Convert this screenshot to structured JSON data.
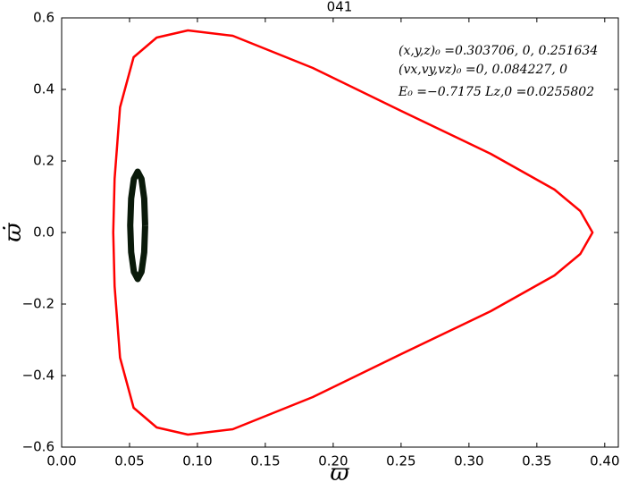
{
  "chart_data": {
    "type": "line",
    "title": "041",
    "xlabel": "ϖ",
    "ylabel": "ϖ̇",
    "annotations": [
      "(x,y,z)₀ =0.303706, 0, 0.251634",
      "(vx,vy,vz)₀ =0, 0.084227, 0",
      "E₀ =−0.7175  Lz,0 =0.0255802"
    ],
    "xlim": [
      0,
      0.41
    ],
    "ylim": [
      -0.6,
      0.6
    ],
    "xticks": [
      {
        "value": 0,
        "label": "0.00"
      },
      {
        "value": 0.05,
        "label": "0.05"
      },
      {
        "value": 0.1,
        "label": "0.10"
      },
      {
        "value": 0.15,
        "label": "0.15"
      },
      {
        "value": 0.2,
        "label": "0.20"
      },
      {
        "value": 0.25,
        "label": "0.25"
      },
      {
        "value": 0.3,
        "label": "0.30"
      },
      {
        "value": 0.35,
        "label": "0.35"
      },
      {
        "value": 0.4,
        "label": "0.40"
      }
    ],
    "yticks": [
      {
        "value": -0.6,
        "label": "−0.6"
      },
      {
        "value": -0.4,
        "label": "−0.4"
      },
      {
        "value": -0.2,
        "label": "−0.2"
      },
      {
        "value": 0,
        "label": "0.0"
      },
      {
        "value": 0.2,
        "label": "0.2"
      },
      {
        "value": 0.4,
        "label": "0.4"
      },
      {
        "value": 0.6,
        "label": "0.6"
      }
    ],
    "grid": false,
    "series": [
      {
        "color": "#ff0000",
        "x": [
          0.038,
          0.039,
          0.043,
          0.053,
          0.07,
          0.093,
          0.126,
          0.185,
          0.25,
          0.316,
          0.363,
          0.382,
          0.391,
          0.382,
          0.363,
          0.316,
          0.25,
          0.185,
          0.126,
          0.093,
          0.07,
          0.053,
          0.043,
          0.039,
          0.038
        ],
        "values": [
          0,
          0.15,
          0.35,
          0.49,
          0.545,
          0.565,
          0.55,
          0.46,
          0.34,
          0.22,
          0.12,
          0.06,
          0,
          -0.06,
          -0.12,
          -0.22,
          -0.34,
          -0.46,
          -0.55,
          -0.565,
          -0.545,
          -0.49,
          -0.35,
          -0.15,
          0
        ]
      },
      {
        "color": "#0a1a0a",
        "x": [
          0.0615,
          0.0608,
          0.0588,
          0.056,
          0.0532,
          0.0512,
          0.0505,
          0.0512,
          0.0532,
          0.056,
          0.0588,
          0.0608,
          0.0615
        ],
        "values": [
          0.02,
          0.095,
          0.15,
          0.17,
          0.15,
          0.095,
          0.02,
          -0.055,
          -0.11,
          -0.13,
          -0.11,
          -0.055,
          0.02
        ]
      }
    ]
  }
}
